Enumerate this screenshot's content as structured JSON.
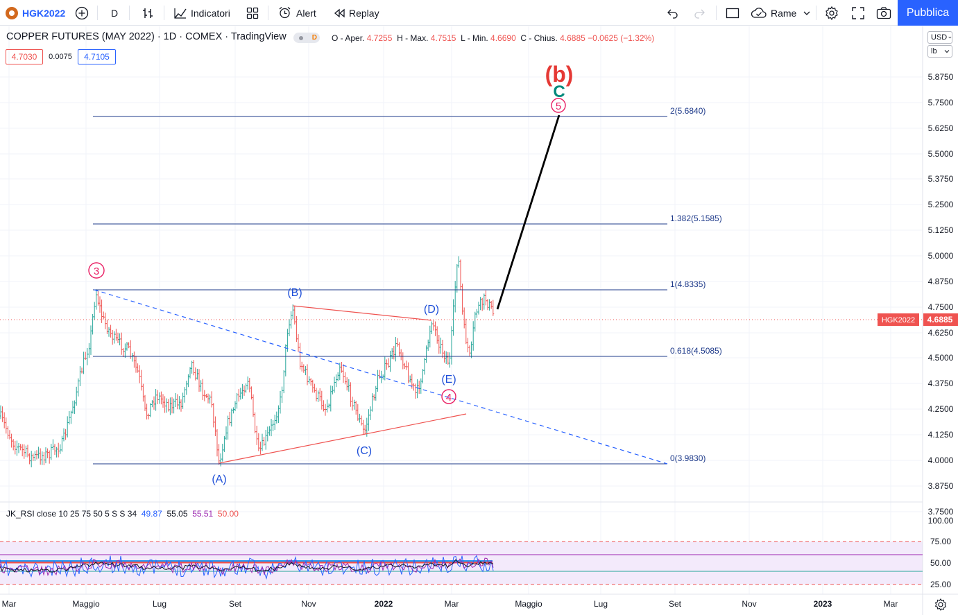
{
  "toolbar": {
    "symbol": "HGK2022",
    "interval": "D",
    "indicators_label": "Indicatori",
    "alert_label": "Alert",
    "replay_label": "Replay",
    "layout_name": "Rame",
    "publish_label": "Pubblica"
  },
  "legend": {
    "title": "COPPER FUTURES (MAY 2022) · 1D · COMEX · TradingView",
    "badge": "D",
    "o_label": "O - Aper.",
    "o": "4.7255",
    "h_label": "H - Max.",
    "h": "4.7515",
    "l_label": "L - Min.",
    "l": "4.6690",
    "c_label": "C - Chius.",
    "c": "4.6885",
    "change": "−0.0625 (−1.32%)",
    "bid": "4.7030",
    "spread": "0.0075",
    "ask": "4.7105"
  },
  "price_axis": {
    "currency": "USD",
    "unit": "lb",
    "ticks": [
      "5.8750",
      "5.7500",
      "5.6250",
      "5.5000",
      "5.3750",
      "5.2500",
      "5.1250",
      "5.0000",
      "4.8750",
      "4.7500",
      "4.6250",
      "4.5000",
      "4.3750",
      "4.2500",
      "4.1250",
      "4.0000",
      "3.8750",
      "3.7500"
    ],
    "last_symbol": "HGK2022",
    "last_price": "4.6885"
  },
  "time_axis": {
    "labels": [
      "Mar",
      "Maggio",
      "Lug",
      "Set",
      "Nov",
      "2022",
      "Mar",
      "Maggio",
      "Lug",
      "Set",
      "Nov",
      "2023",
      "Mar"
    ]
  },
  "fib_levels": [
    {
      "label": "2(5.6840)"
    },
    {
      "label": "1.382(5.1585)"
    },
    {
      "label": "1(4.8335)"
    },
    {
      "label": "0.618(4.5085)"
    },
    {
      "label": "0(3.9830)"
    }
  ],
  "wave_labels": {
    "b": "(b)",
    "c": "C",
    "w5": "5",
    "w3": "3",
    "w4": "4",
    "A": "(A)",
    "B": "(B)",
    "C": "(C)",
    "D": "(D)",
    "E": "(E)"
  },
  "rsi": {
    "legend_name": "JK_RSI close 10 25 75 50 5 S S 34",
    "v1": "49.87",
    "v2": "55.05",
    "v3": "55.51",
    "v4": "50.00",
    "ticks": [
      "100.00",
      "75.00",
      "50.00",
      "25.00"
    ]
  },
  "colors": {
    "up": "#26a69a",
    "down": "#ef5350",
    "fib": "#1e3a8a",
    "wave_blue": "#1e4fd8",
    "wave_pink": "#e91e63",
    "accent": "#2962ff"
  }
}
